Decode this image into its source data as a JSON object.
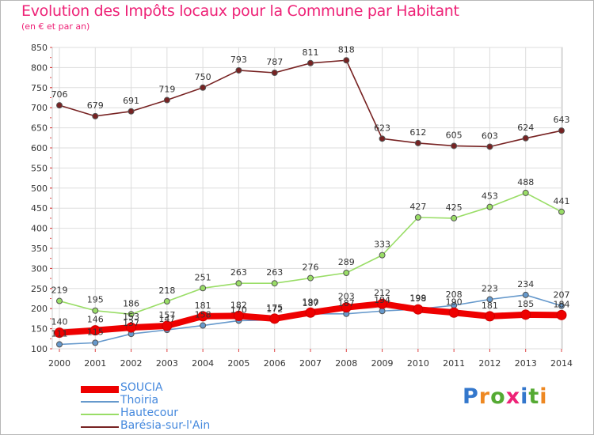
{
  "title": "Evolution des Impôts locaux pour la Commune par Habitant",
  "subtitle": "(en € et par an)",
  "logo": {
    "letters": [
      {
        "ch": "P",
        "color": "#3377cc"
      },
      {
        "ch": "r",
        "color": "#ee8822"
      },
      {
        "ch": "o",
        "color": "#55aa33"
      },
      {
        "ch": "x",
        "color": "#ee2277"
      },
      {
        "ch": "i",
        "color": "#3377cc"
      },
      {
        "ch": "t",
        "color": "#55aa33"
      },
      {
        "ch": "i",
        "color": "#ee8822"
      }
    ]
  },
  "chart_data": {
    "type": "line",
    "x": [
      "2000",
      "2001",
      "2002",
      "2003",
      "2004",
      "2005",
      "2006",
      "2007",
      "2008",
      "2009",
      "2010",
      "2011",
      "2012",
      "2013",
      "2014"
    ],
    "ylim": [
      100,
      850
    ],
    "yticks": [
      100,
      150,
      200,
      250,
      300,
      350,
      400,
      450,
      500,
      550,
      600,
      650,
      700,
      750,
      800,
      850
    ],
    "grid": true,
    "legend_position": "bottom-left",
    "series": [
      {
        "name": "SOUCIA",
        "color": "#ee0000",
        "values": [
          140,
          146,
          153,
          157,
          181,
          182,
          175,
          190,
          203,
          212,
          198,
          190,
          181,
          185,
          184
        ]
      },
      {
        "name": "Thoiria",
        "color": "#6699cc",
        "values": [
          111,
          115,
          137,
          147,
          158,
          170,
          172,
          187,
          187,
          194,
          199,
          208,
          223,
          234,
          207
        ]
      },
      {
        "name": "Hautecour",
        "color": "#99dd66",
        "values": [
          219,
          195,
          186,
          218,
          251,
          263,
          263,
          276,
          289,
          333,
          427,
          425,
          453,
          488,
          441
        ]
      },
      {
        "name": "Barésia-sur-l'Ain",
        "color": "#772222",
        "values": [
          706,
          679,
          691,
          719,
          750,
          793,
          787,
          811,
          818,
          623,
          612,
          605,
          603,
          624,
          643
        ]
      }
    ]
  }
}
